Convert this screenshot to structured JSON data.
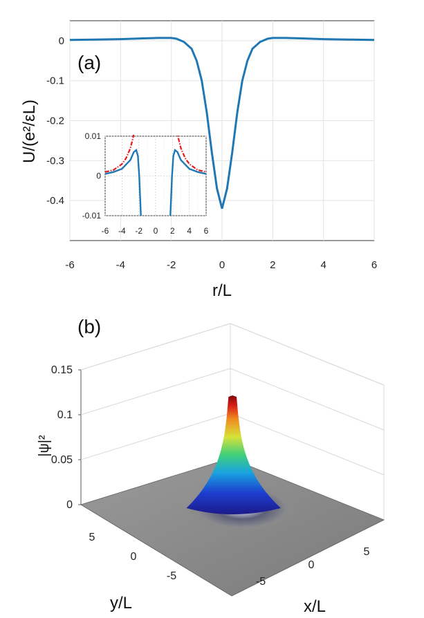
{
  "chart_data": [
    {
      "type": "line",
      "panel_label": "(a)",
      "xlabel": "r/L",
      "ylabel": "U/(e²/εL)",
      "xlim": [
        -6,
        6
      ],
      "ylim": [
        -0.5,
        0.05
      ],
      "xticks": [
        "-6",
        "-4",
        "-2",
        "0",
        "2",
        "4",
        "6"
      ],
      "yticks": [
        "0",
        "-0.1",
        "-0.2",
        "-0.3",
        "-0.4"
      ],
      "grid": true,
      "series": [
        {
          "color": "#1f77b4",
          "x": [
            -6,
            -5,
            -4,
            -3,
            -2.5,
            -2,
            -1.8,
            -1.5,
            -1.2,
            -1,
            -0.8,
            -0.6,
            -0.4,
            -0.2,
            0,
            0.2,
            0.4,
            0.6,
            0.8,
            1,
            1.2,
            1.5,
            1.8,
            2,
            2.5,
            3,
            4,
            5,
            6
          ],
          "y": [
            0.002,
            0.003,
            0.004,
            0.006,
            0.007,
            0.007,
            0.005,
            -0.003,
            -0.02,
            -0.05,
            -0.1,
            -0.18,
            -0.28,
            -0.37,
            -0.42,
            -0.37,
            -0.28,
            -0.18,
            -0.1,
            -0.05,
            -0.02,
            -0.003,
            0.005,
            0.007,
            0.007,
            0.006,
            0.004,
            0.003,
            0.002
          ]
        }
      ],
      "inset": {
        "xlim": [
          -6,
          6
        ],
        "ylim": [
          -0.01,
          0.01
        ],
        "xticks": [
          "-6",
          "-4",
          "-2",
          "0",
          "2",
          "4",
          "6"
        ],
        "yticks": [
          "0.01",
          "0",
          "-0.01"
        ],
        "series": [
          {
            "color": "#1f77b4",
            "style": "solid",
            "x": [
              -6,
              -5,
              -4,
              -3,
              -2.6,
              -2.3,
              -2.1,
              -1.95,
              -1.85,
              -1.75
            ],
            "y": [
              0.0005,
              0.001,
              0.0018,
              0.004,
              0.006,
              0.0065,
              0.005,
              0.0,
              -0.005,
              -0.01
            ]
          },
          {
            "color": "#1f77b4",
            "style": "solid",
            "x": [
              1.75,
              1.85,
              1.95,
              2.1,
              2.3,
              2.6,
              3,
              4,
              5,
              6
            ],
            "y": [
              -0.01,
              -0.005,
              0.0,
              0.005,
              0.0065,
              0.006,
              0.004,
              0.0018,
              0.001,
              0.0005
            ]
          },
          {
            "color": "#e8191c",
            "style": "dashdot",
            "x": [
              -6,
              -5,
              -4,
              -3.5,
              -3,
              -2.7,
              -2.5
            ],
            "y": [
              0.001,
              0.0015,
              0.003,
              0.0045,
              0.007,
              0.0095,
              0.0115
            ]
          },
          {
            "color": "#e8191c",
            "style": "dashdot",
            "x": [
              2.5,
              2.7,
              3,
              3.5,
              4,
              5,
              6
            ],
            "y": [
              0.0115,
              0.0095,
              0.007,
              0.0045,
              0.003,
              0.0015,
              0.001
            ]
          }
        ]
      }
    },
    {
      "type": "surface3d",
      "panel_label": "(b)",
      "xlabel": "x/L",
      "ylabel": "y/L",
      "zlabel": "|ψ|²",
      "zticks": [
        "0.15",
        "0.1",
        "0.05",
        "0"
      ],
      "xticks": [
        "5",
        "0",
        "-5"
      ],
      "yticks": [
        "5",
        "0",
        "-5"
      ],
      "zlim": [
        0,
        0.15
      ],
      "peak_value": 0.12
    }
  ]
}
